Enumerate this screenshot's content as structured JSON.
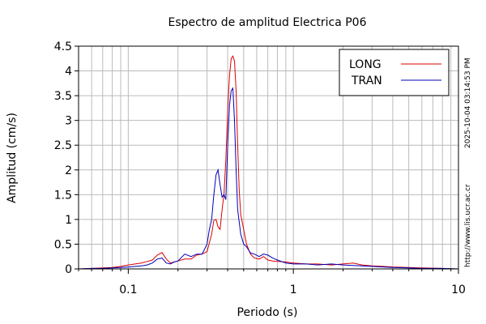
{
  "chart_data": {
    "type": "line",
    "title": "Espectro de amplitud Electrica P06",
    "xlabel": "Periodo (s)",
    "ylabel": "Amplitud (cm/s)",
    "xscale": "log",
    "xlim": [
      0.05,
      10
    ],
    "ylim": [
      0,
      4.5
    ],
    "grid": true,
    "legend_position": "top-right",
    "x_ticks": [
      {
        "value": 0.1,
        "label": "0.1"
      },
      {
        "value": 1,
        "label": "1"
      },
      {
        "value": 10,
        "label": "10"
      }
    ],
    "y_ticks": [
      {
        "value": 0,
        "label": "0"
      },
      {
        "value": 0.5,
        "label": "0.5"
      },
      {
        "value": 1,
        "label": "1"
      },
      {
        "value": 1.5,
        "label": "1.5"
      },
      {
        "value": 2,
        "label": "2"
      },
      {
        "value": 2.5,
        "label": "2.5"
      },
      {
        "value": 3,
        "label": "3"
      },
      {
        "value": 3.5,
        "label": "3.5"
      },
      {
        "value": 4,
        "label": "4"
      },
      {
        "value": 4.5,
        "label": "4.5"
      }
    ],
    "series": [
      {
        "name": "LONG",
        "color": "#dd0000",
        "x": [
          0.05,
          0.06,
          0.07,
          0.08,
          0.09,
          0.1,
          0.11,
          0.12,
          0.13,
          0.14,
          0.15,
          0.16,
          0.17,
          0.18,
          0.19,
          0.2,
          0.22,
          0.24,
          0.26,
          0.28,
          0.3,
          0.32,
          0.33,
          0.34,
          0.35,
          0.36,
          0.37,
          0.38,
          0.39,
          0.4,
          0.41,
          0.42,
          0.43,
          0.44,
          0.45,
          0.46,
          0.47,
          0.48,
          0.5,
          0.52,
          0.55,
          0.58,
          0.62,
          0.66,
          0.7,
          0.75,
          0.8,
          0.9,
          1,
          1.2,
          1.4,
          1.7,
          2,
          2.3,
          2.6,
          3,
          3.5,
          4,
          5,
          6,
          8,
          10
        ],
        "y": [
          0,
          0.01,
          0.02,
          0.03,
          0.05,
          0.08,
          0.1,
          0.12,
          0.15,
          0.18,
          0.28,
          0.33,
          0.2,
          0.12,
          0.14,
          0.16,
          0.2,
          0.2,
          0.28,
          0.3,
          0.35,
          0.7,
          0.98,
          1.0,
          0.85,
          0.8,
          1.2,
          1.5,
          2.2,
          3.2,
          3.9,
          4.25,
          4.3,
          4.2,
          3.6,
          2.5,
          1.6,
          1.1,
          0.8,
          0.5,
          0.3,
          0.22,
          0.2,
          0.25,
          0.18,
          0.16,
          0.15,
          0.14,
          0.12,
          0.1,
          0.1,
          0.08,
          0.1,
          0.12,
          0.08,
          0.06,
          0.05,
          0.04,
          0.03,
          0.02,
          0.01,
          0
        ]
      },
      {
        "name": "TRAN",
        "color": "#0000bb",
        "x": [
          0.05,
          0.06,
          0.07,
          0.08,
          0.09,
          0.1,
          0.11,
          0.12,
          0.13,
          0.14,
          0.15,
          0.16,
          0.17,
          0.18,
          0.19,
          0.2,
          0.22,
          0.24,
          0.26,
          0.28,
          0.3,
          0.31,
          0.32,
          0.33,
          0.34,
          0.35,
          0.36,
          0.37,
          0.38,
          0.39,
          0.4,
          0.41,
          0.42,
          0.43,
          0.44,
          0.45,
          0.46,
          0.48,
          0.5,
          0.52,
          0.55,
          0.58,
          0.62,
          0.66,
          0.7,
          0.75,
          0.8,
          0.9,
          1,
          1.2,
          1.4,
          1.7,
          2,
          2.3,
          2.6,
          3,
          3.5,
          4,
          5,
          6,
          8,
          10
        ],
        "y": [
          0,
          0.01,
          0.01,
          0.02,
          0.03,
          0.04,
          0.05,
          0.06,
          0.08,
          0.12,
          0.2,
          0.22,
          0.12,
          0.1,
          0.14,
          0.16,
          0.3,
          0.25,
          0.3,
          0.3,
          0.5,
          0.8,
          1.0,
          1.5,
          1.9,
          2.0,
          1.7,
          1.45,
          1.5,
          1.4,
          2.5,
          3.3,
          3.6,
          3.65,
          3.0,
          2.0,
          1.2,
          0.7,
          0.5,
          0.45,
          0.32,
          0.3,
          0.25,
          0.3,
          0.28,
          0.22,
          0.18,
          0.12,
          0.1,
          0.1,
          0.08,
          0.1,
          0.08,
          0.07,
          0.06,
          0.05,
          0.04,
          0.03,
          0.02,
          0.01,
          0.01,
          0
        ]
      }
    ]
  },
  "side_notes": {
    "timestamp": "2025-10-04 03:14:53 PM",
    "url": "http://www.lis.ucr.ac.cr"
  }
}
